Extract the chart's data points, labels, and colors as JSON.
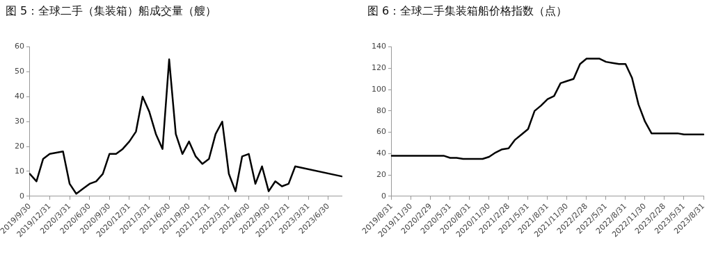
{
  "chart_data": [
    {
      "type": "line",
      "title": "图 5：全球二手（集装箱）船成交量（艘）",
      "categories": [
        "2019/9/30",
        null,
        null,
        "2019/12/31",
        null,
        null,
        "2020/3/31",
        null,
        null,
        "2020/6/30",
        null,
        null,
        "2020/9/30",
        null,
        null,
        "2020/12/31",
        null,
        null,
        "2021/3/31",
        null,
        null,
        "2021/6/30",
        null,
        null,
        "2021/9/30",
        null,
        null,
        "2021/12/31",
        null,
        null,
        "2022/3/31",
        null,
        null,
        "2022/6/30",
        null,
        null,
        "2022/9/30",
        null,
        null,
        "2022/12/31",
        null,
        null,
        "2023/3/31",
        null,
        null,
        "2023/6/30",
        null,
        null
      ],
      "series": [
        {
          "color": "#000000",
          "values": [
            9,
            6,
            15,
            17,
            17.5,
            18,
            5,
            1,
            3,
            5,
            6,
            9,
            17,
            17,
            19,
            22,
            26,
            40,
            34,
            25,
            19,
            55,
            25,
            17,
            22,
            16,
            13,
            15,
            25,
            30,
            9,
            2,
            16,
            17,
            5,
            12,
            2,
            6,
            4,
            5,
            12,
            null,
            null,
            null,
            null,
            null,
            null,
            8
          ]
        }
      ],
      "ylim": [
        0,
        60
      ],
      "yticks": [
        0,
        10,
        20,
        30,
        40,
        50,
        60
      ],
      "grid": false,
      "legend": false,
      "marker": "none",
      "line_style": "solid"
    },
    {
      "type": "line",
      "title": "图 6：全球二手集装箱船价格指数（点）",
      "categories": [
        "2019/8/31",
        null,
        null,
        "2019/11/30",
        null,
        null,
        "2020/2/29",
        null,
        null,
        "2020/5/31",
        null,
        null,
        "2020/8/31",
        null,
        null,
        "2020/11/30",
        null,
        null,
        "2021/2/28",
        null,
        null,
        "2021/5/31",
        null,
        null,
        "2021/8/31",
        null,
        null,
        "2021/11/30",
        null,
        null,
        "2022/2/28",
        null,
        null,
        "2022/5/31",
        null,
        null,
        "2022/8/31",
        null,
        null,
        "2022/11/30",
        null,
        null,
        "2023/2/28",
        null,
        null,
        "2023/5/31",
        null,
        null,
        "2023/8/31"
      ],
      "series": [
        {
          "color": "#000000",
          "values": [
            38,
            38,
            38,
            38,
            38,
            38,
            38,
            38,
            38,
            36,
            36,
            35,
            35,
            35,
            35,
            37,
            41,
            44,
            45,
            53,
            58,
            63,
            80,
            85,
            91,
            94,
            106,
            108,
            110,
            124,
            129,
            129,
            129,
            126,
            125,
            124,
            124,
            111,
            86,
            70,
            59,
            59,
            59,
            59,
            59,
            58,
            58,
            58,
            58
          ]
        }
      ],
      "ylim": [
        0,
        140
      ],
      "yticks": [
        0,
        20,
        40,
        60,
        80,
        100,
        120,
        140
      ],
      "grid": false,
      "legend": false,
      "marker": "none",
      "line_style": "solid"
    }
  ]
}
